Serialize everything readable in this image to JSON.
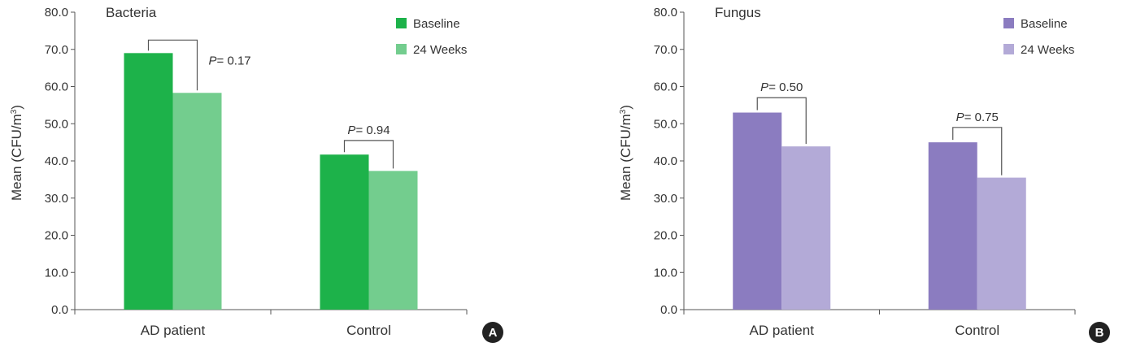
{
  "chart_data": [
    {
      "type": "bar",
      "title": "Bacteria",
      "xlabel": "",
      "ylabel": "Mean (CFU/m",
      "ylabel_sup": "3",
      "ylabel_close": ")",
      "ylim": [
        0,
        80
      ],
      "yticks": [
        0,
        10,
        20,
        30,
        40,
        50,
        60,
        70,
        80
      ],
      "ytick_labels": [
        "0.0",
        "10.0",
        "20.0",
        "30.0",
        "40.0",
        "50.0",
        "60.0",
        "70.0",
        "80.0"
      ],
      "categories": [
        "AD patient",
        "Control"
      ],
      "series": [
        {
          "name": "Baseline",
          "values": [
            69.0,
            41.7
          ],
          "color": "#1db24a"
        },
        {
          "name": "24 Weeks",
          "values": [
            58.3,
            37.3
          ],
          "color": "#73cd8e"
        }
      ],
      "annotations": [
        {
          "category": "AD patient",
          "p_italic": "P",
          "p_rest": "= 0.17",
          "bracket_top": 72.5,
          "text_position": "right"
        },
        {
          "category": "Control",
          "p_italic": "P",
          "p_rest": "= 0.94",
          "bracket_top": 45.5,
          "text_position": "above"
        }
      ],
      "legend": "top-right",
      "grid": false,
      "panel_letter": "A"
    },
    {
      "type": "bar",
      "title": "Fungus",
      "xlabel": "",
      "ylabel": "Mean (CFU/m",
      "ylabel_sup": "3",
      "ylabel_close": ")",
      "ylim": [
        0,
        80
      ],
      "yticks": [
        0,
        10,
        20,
        30,
        40,
        50,
        60,
        70,
        80
      ],
      "ytick_labels": [
        "0.0",
        "10.0",
        "20.0",
        "30.0",
        "40.0",
        "50.0",
        "60.0",
        "70.0",
        "80.0"
      ],
      "categories": [
        "AD patient",
        "Control"
      ],
      "series": [
        {
          "name": "Baseline",
          "values": [
            53.0,
            45.0
          ],
          "color": "#8b7cc0"
        },
        {
          "name": "24 Weeks",
          "values": [
            43.9,
            35.5
          ],
          "color": "#b3aad7"
        }
      ],
      "annotations": [
        {
          "category": "AD patient",
          "p_italic": "P",
          "p_rest": "= 0.50",
          "bracket_top": 57.0,
          "text_position": "above"
        },
        {
          "category": "Control",
          "p_italic": "P",
          "p_rest": "= 0.75",
          "bracket_top": 49.0,
          "text_position": "above"
        }
      ],
      "legend": "top-right",
      "grid": false,
      "panel_letter": "B"
    }
  ]
}
